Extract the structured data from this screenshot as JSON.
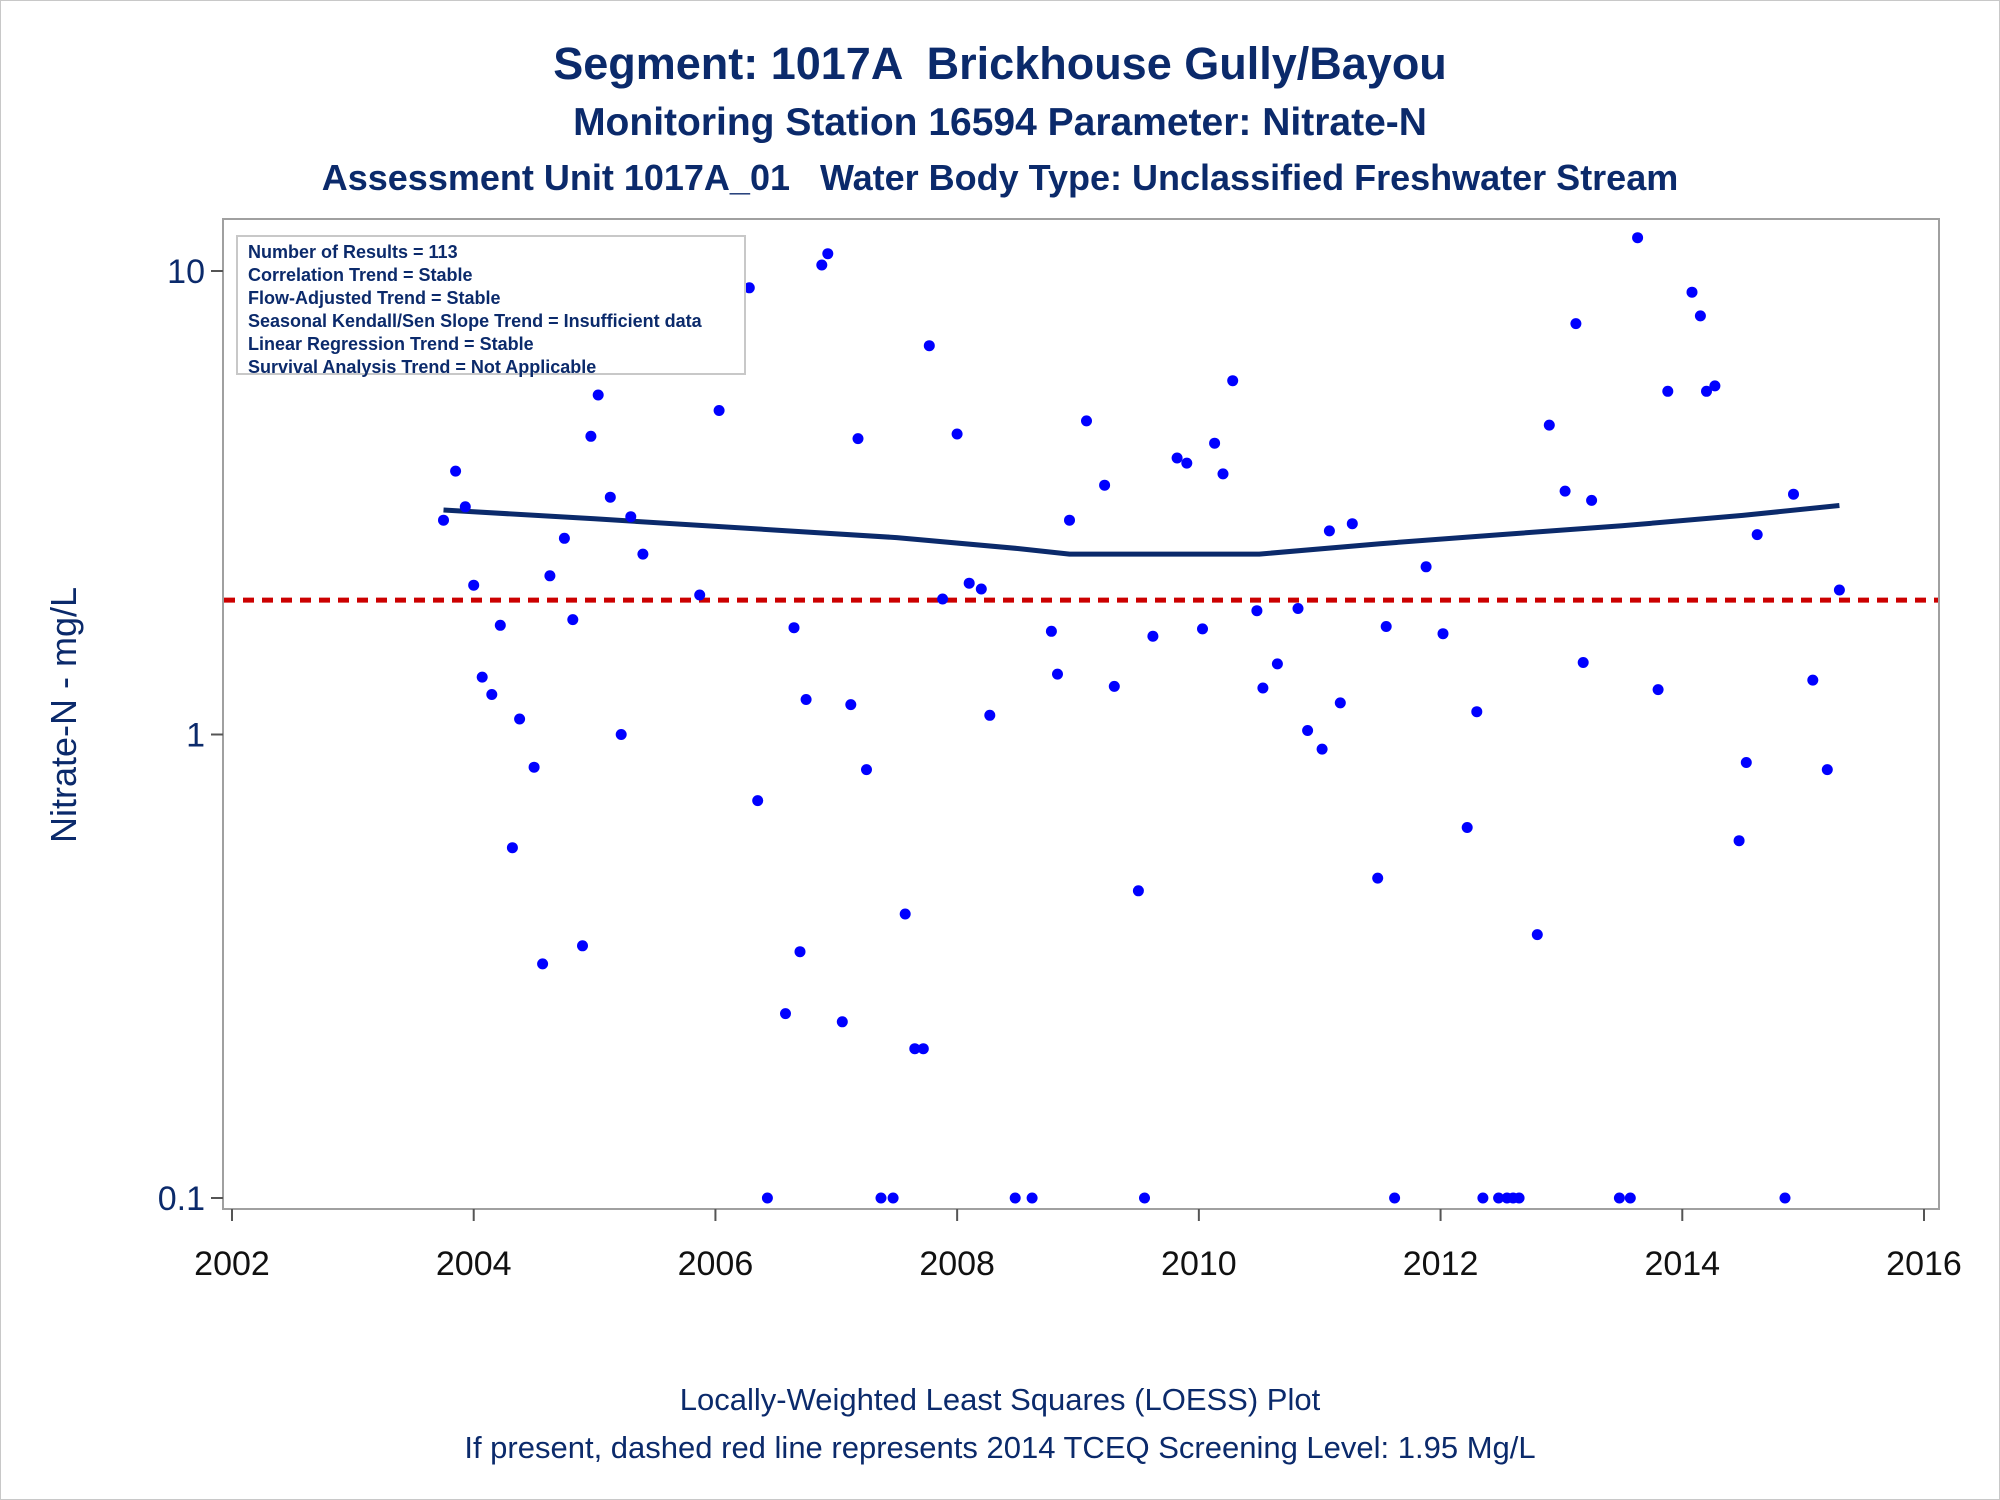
{
  "titles": {
    "line1": "Segment: 1017A  Brickhouse Gully/Bayou",
    "line2": "Monitoring Station 16594 Parameter: Nitrate-N",
    "line3": "Assessment Unit 1017A_01   Water Body Type: Unclassified Freshwater Stream"
  },
  "footnotes": {
    "line1": "Locally-Weighted Least Squares (LOESS) Plot",
    "line2": "If present, dashed red line represents 2014 TCEQ Screening Level: 1.95 Mg/L"
  },
  "stats": [
    "Number of Results = 113",
    "Correlation Trend = Stable",
    "Flow-Adjusted Trend = Stable",
    "Seasonal Kendall/Sen Slope Trend = Insufficient data",
    "Linear Regression Trend = Stable",
    "Survival Analysis Trend = Not Applicable"
  ],
  "colors": {
    "text": "#0b2a6b",
    "points": "#0000ff",
    "loess": "#0b2a6b",
    "screening": "#cc0000",
    "frame": "#a0a0a0"
  },
  "chart_data": {
    "type": "scatter",
    "ylabel": "Nitrate-N - mg/L",
    "xlabel": "",
    "yscale": "log",
    "xlim": [
      2002,
      2016
    ],
    "ylim": [
      0.1,
      12
    ],
    "xticks": [
      "2002",
      "2004",
      "2006",
      "2008",
      "2010",
      "2012",
      "2014",
      "2016"
    ],
    "yticks": [
      "0.1",
      "1",
      "10"
    ],
    "screening_level": 1.95,
    "series": [
      {
        "kind": "points",
        "x": [
          2003.75,
          2003.85,
          2003.93,
          2004.0,
          2004.07,
          2004.15,
          2004.22,
          2004.32,
          2004.38,
          2004.5,
          2004.57,
          2004.63,
          2004.75,
          2004.82,
          2004.9,
          2004.97,
          2005.03,
          2005.13,
          2005.22,
          2005.3,
          2005.4,
          2005.73,
          2005.82,
          2005.87,
          2005.98,
          2006.03,
          2006.12,
          2006.15,
          2006.28,
          2006.35,
          2006.43,
          2006.58,
          2006.65,
          2006.7,
          2006.75,
          2006.88,
          2006.93,
          2007.05,
          2007.12,
          2007.18,
          2007.25,
          2007.37,
          2007.47,
          2007.57,
          2007.65,
          2007.72,
          2007.77,
          2007.88,
          2008.0,
          2008.1,
          2008.2,
          2008.27,
          2008.48,
          2008.62,
          2008.78,
          2008.83,
          2008.93,
          2009.07,
          2009.22,
          2009.3,
          2009.5,
          2009.55,
          2009.62,
          2009.82,
          2009.9,
          2010.03,
          2010.13,
          2010.2,
          2010.28,
          2010.48,
          2010.53,
          2010.65,
          2010.82,
          2010.9,
          2011.02,
          2011.08,
          2011.17,
          2011.27,
          2011.48,
          2011.55,
          2011.62,
          2011.88,
          2012.02,
          2012.22,
          2012.3,
          2012.35,
          2012.48,
          2012.55,
          2012.6,
          2012.65,
          2012.8,
          2012.9,
          2013.03,
          2013.12,
          2013.18,
          2013.25,
          2013.48,
          2013.57,
          2013.63,
          2013.8,
          2013.88,
          2014.08,
          2014.15,
          2014.2,
          2014.27,
          2014.47,
          2014.53,
          2014.62,
          2014.85,
          2014.92,
          2015.08,
          2015.2,
          2015.3
        ],
        "y": [
          2.9,
          3.7,
          3.1,
          2.1,
          1.33,
          1.22,
          1.72,
          0.57,
          1.08,
          0.85,
          0.32,
          2.2,
          2.65,
          1.77,
          0.35,
          4.4,
          5.4,
          3.25,
          1.0,
          2.95,
          2.45,
          6.65,
          6.45,
          2.0,
          8.7,
          5.0,
          7.6,
          7.7,
          9.2,
          0.72,
          0.1,
          0.25,
          1.7,
          0.34,
          1.19,
          10.3,
          10.9,
          0.24,
          1.16,
          4.35,
          0.84,
          0.1,
          0.1,
          0.41,
          0.21,
          0.21,
          6.9,
          1.96,
          4.45,
          2.12,
          2.06,
          1.1,
          0.1,
          0.1,
          1.67,
          1.35,
          2.9,
          4.75,
          3.45,
          1.27,
          0.46,
          0.1,
          1.63,
          3.95,
          3.85,
          1.69,
          4.25,
          3.65,
          5.8,
          1.85,
          1.26,
          1.42,
          1.87,
          1.02,
          0.93,
          2.75,
          1.17,
          2.85,
          0.49,
          1.71,
          0.1,
          2.3,
          1.65,
          0.63,
          1.12,
          0.1,
          0.1,
          0.1,
          0.1,
          0.1,
          0.37,
          4.65,
          3.35,
          7.7,
          1.43,
          3.2,
          0.1,
          0.1,
          11.8,
          1.25,
          5.5,
          9.0,
          8.0,
          5.5,
          5.65,
          0.59,
          0.87,
          2.7,
          0.1,
          3.3,
          1.31,
          0.84,
          2.05
        ]
      },
      {
        "kind": "loess",
        "x": [
          2003.75,
          2005.0,
          2006.5,
          2007.5,
          2008.5,
          2008.93,
          2010.0,
          2010.5,
          2011.5,
          2012.5,
          2013.5,
          2014.5,
          2015.3
        ],
        "y": [
          3.05,
          2.92,
          2.76,
          2.66,
          2.52,
          2.45,
          2.45,
          2.45,
          2.58,
          2.7,
          2.82,
          2.97,
          3.12
        ]
      }
    ]
  }
}
